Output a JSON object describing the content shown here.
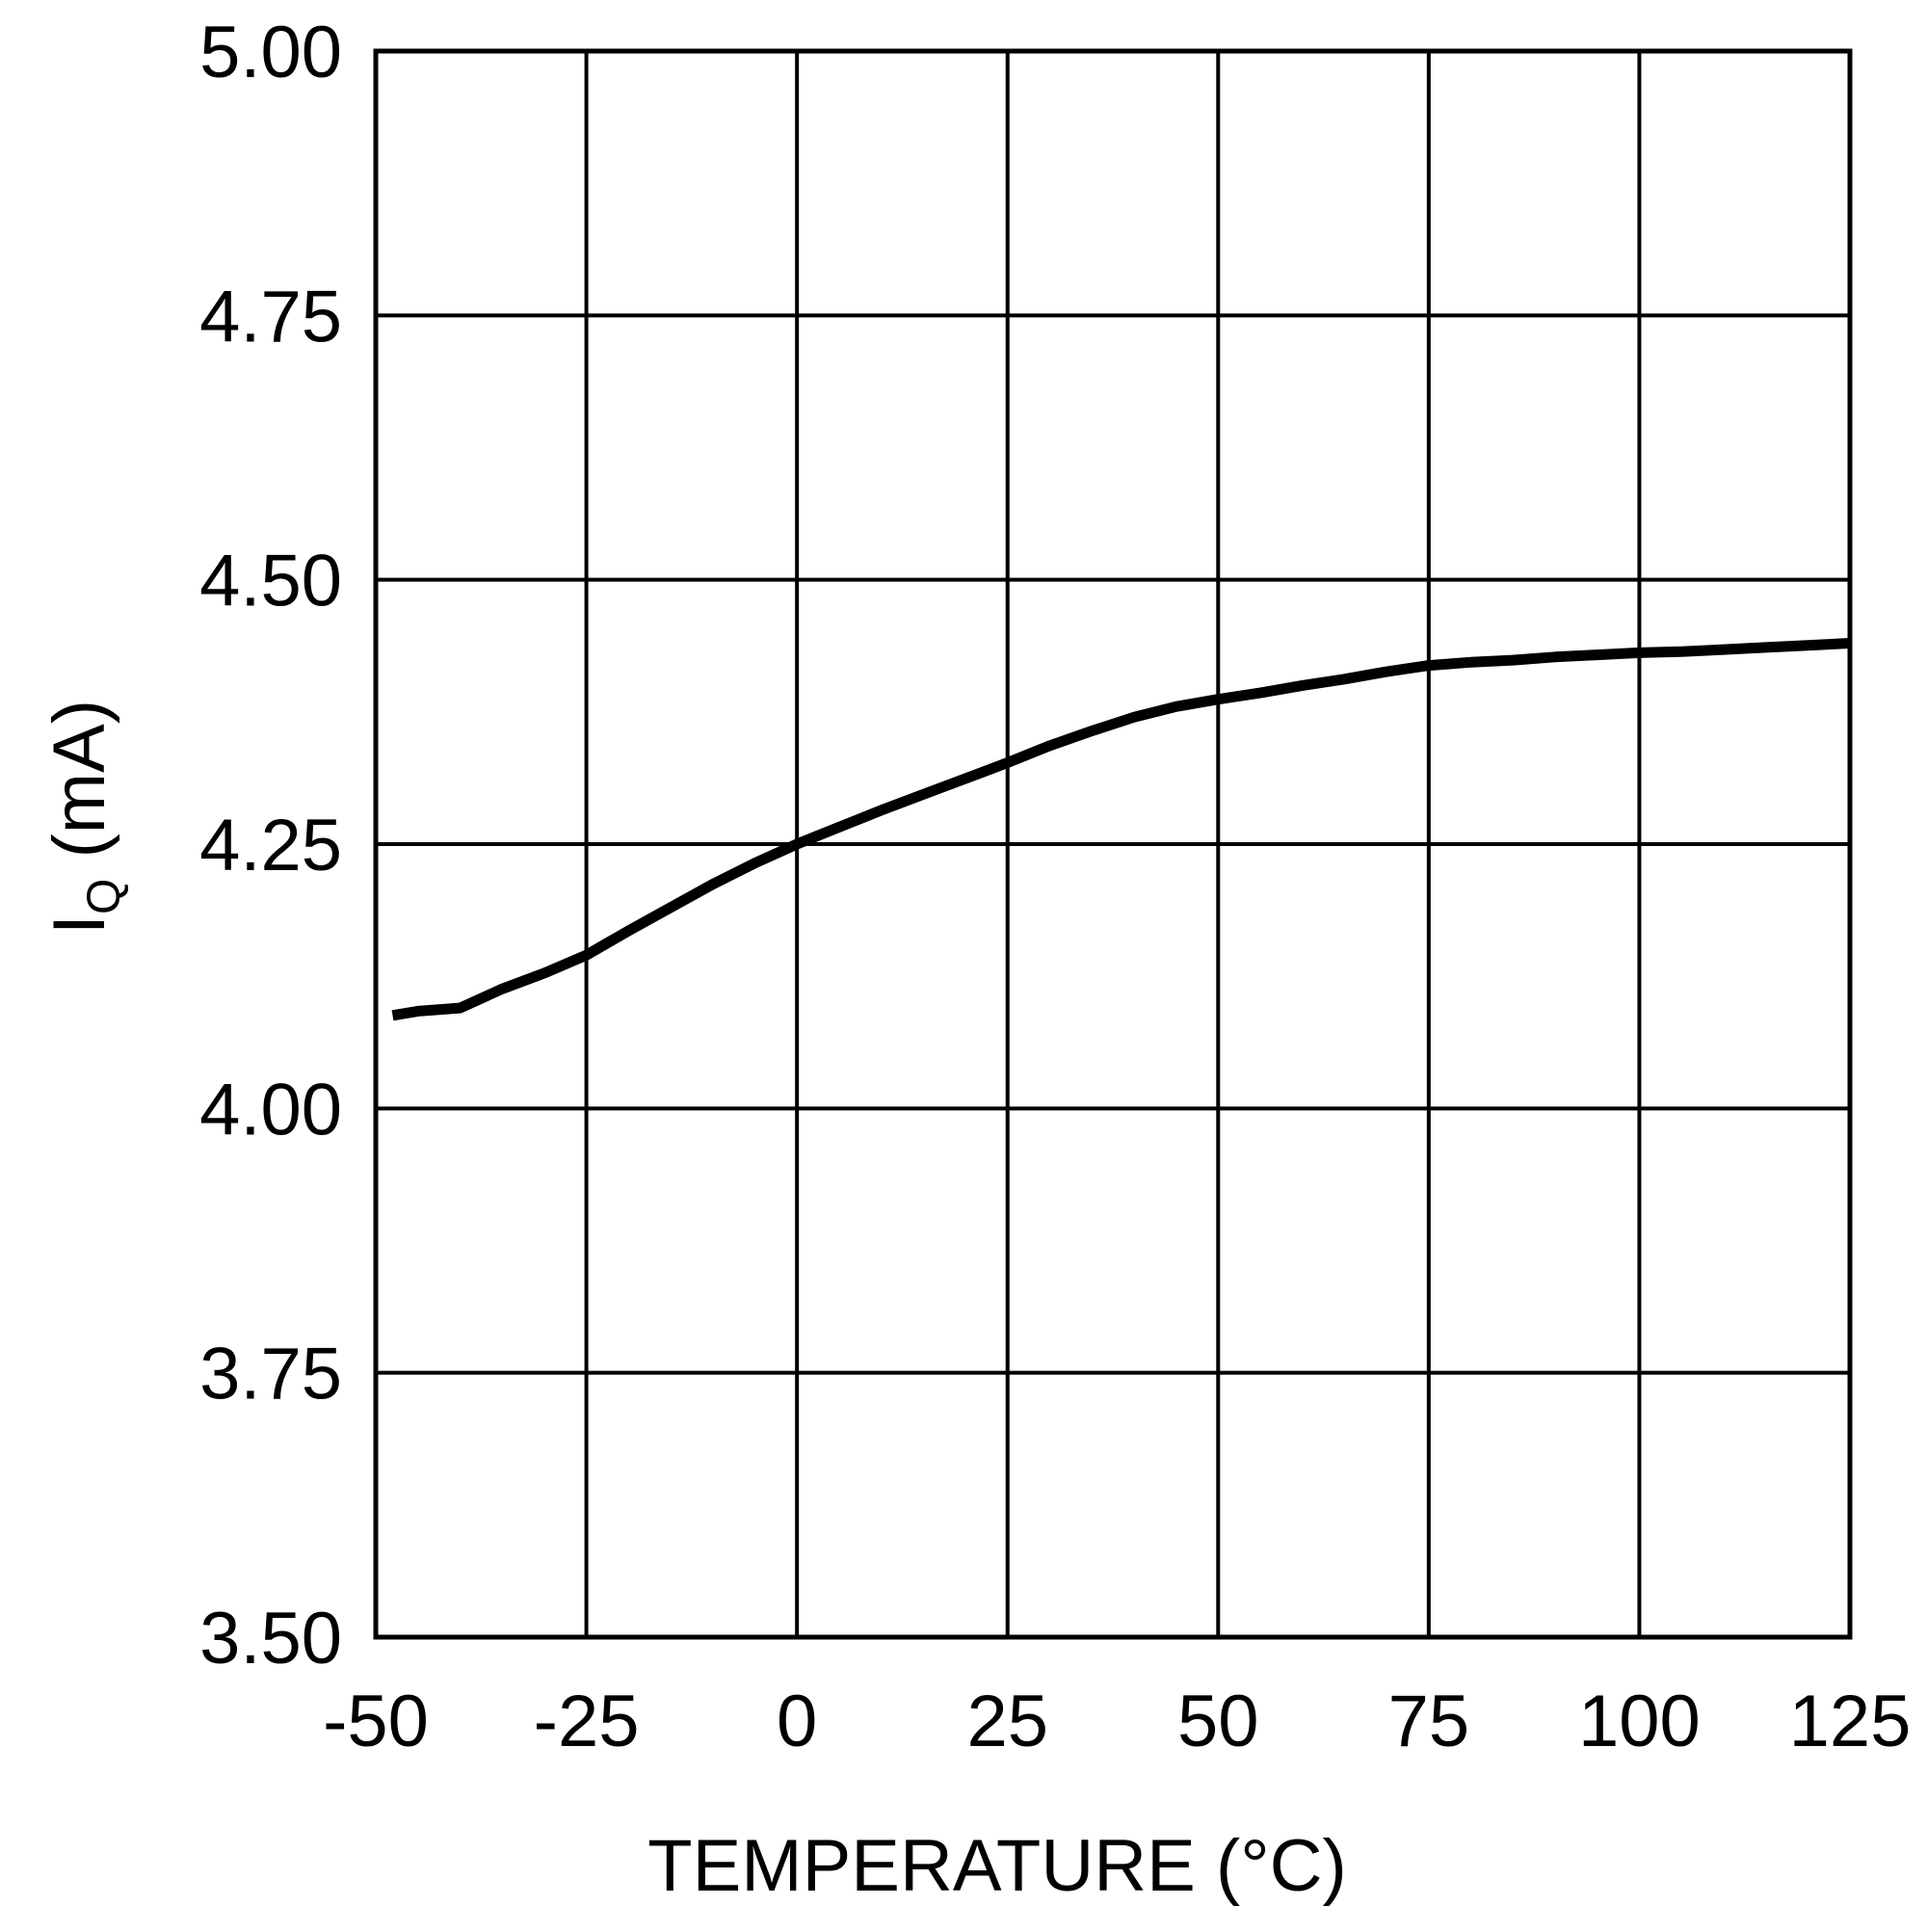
{
  "chart_data": {
    "type": "line",
    "title": "",
    "xlabel": "TEMPERATURE (°C)",
    "ylabel": {
      "main": "I",
      "sub": "Q",
      "unit": " (mA)"
    },
    "xlim": [
      -50,
      125
    ],
    "ylim": [
      3.5,
      5.0
    ],
    "x_ticks": [
      -50,
      -25,
      0,
      25,
      50,
      75,
      100,
      125
    ],
    "x_tick_labels": [
      "-50",
      "-25",
      "0",
      "25",
      "50",
      "75",
      "100",
      "125"
    ],
    "y_ticks": [
      3.5,
      3.75,
      4.0,
      4.25,
      4.5,
      4.75,
      5.0
    ],
    "y_tick_labels": [
      "3.50",
      "3.75",
      "4.00",
      "4.25",
      "4.50",
      "4.75",
      "5.00"
    ],
    "grid": true,
    "legend": "none",
    "series": [
      {
        "color": "#000000",
        "x": [
          -48,
          -45,
          -40,
          -35,
          -30,
          -25,
          -20,
          -15,
          -10,
          -5,
          0,
          5,
          10,
          15,
          20,
          25,
          30,
          35,
          40,
          45,
          50,
          55,
          60,
          65,
          70,
          75,
          80,
          85,
          90,
          95,
          100,
          105,
          110,
          115,
          120,
          125
        ],
        "y": [
          4.088,
          4.092,
          4.095,
          4.113,
          4.128,
          4.145,
          4.168,
          4.19,
          4.212,
          4.232,
          4.25,
          4.266,
          4.282,
          4.297,
          4.312,
          4.327,
          4.343,
          4.357,
          4.37,
          4.38,
          4.387,
          4.393,
          4.4,
          4.406,
          4.413,
          4.419,
          4.422,
          4.424,
          4.427,
          4.429,
          4.431,
          4.432,
          4.434,
          4.436,
          4.438,
          4.44
        ]
      }
    ]
  }
}
